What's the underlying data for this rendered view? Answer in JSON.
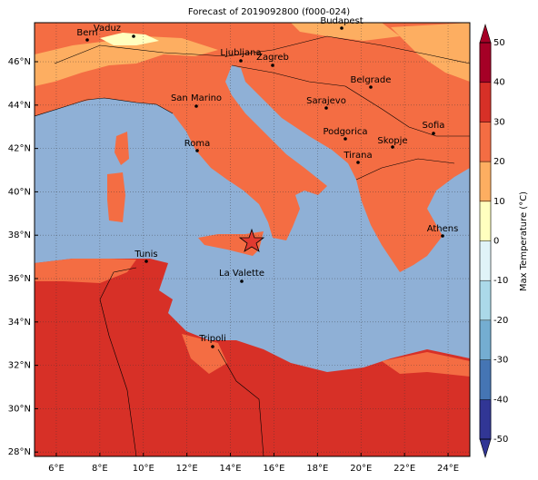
{
  "title": "Forecast of 2019092800 (f000-024)",
  "map": {
    "xlim": [
      5,
      25
    ],
    "ylim": [
      27.8,
      47.8
    ],
    "grid": true,
    "xticks": [
      {
        "value": 6,
        "label": "6°E"
      },
      {
        "value": 8,
        "label": "8°E"
      },
      {
        "value": 10,
        "label": "10°E"
      },
      {
        "value": 12,
        "label": "12°E"
      },
      {
        "value": 14,
        "label": "14°E"
      },
      {
        "value": 16,
        "label": "16°E"
      },
      {
        "value": 18,
        "label": "18°E"
      },
      {
        "value": 20,
        "label": "20°E"
      },
      {
        "value": 22,
        "label": "22°E"
      },
      {
        "value": 24,
        "label": "24°E"
      }
    ],
    "yticks": [
      {
        "value": 28,
        "label": "28°N"
      },
      {
        "value": 30,
        "label": "30°N"
      },
      {
        "value": 32,
        "label": "32°N"
      },
      {
        "value": 34,
        "label": "34°N"
      },
      {
        "value": 36,
        "label": "36°N"
      },
      {
        "value": 38,
        "label": "38°N"
      },
      {
        "value": 40,
        "label": "40°N"
      },
      {
        "value": 42,
        "label": "42°N"
      },
      {
        "value": 44,
        "label": "44°N"
      },
      {
        "value": 46,
        "label": "46°N"
      }
    ],
    "cities": [
      "Bern",
      "Vaduz",
      "Budapest",
      "Ljubljana",
      "Zagreb",
      "Belgrade",
      "San Marino",
      "Sarajevo",
      "Sofia",
      "Podgorica",
      "Skopje",
      "Roma",
      "Tirana",
      "Athens",
      "Tunis",
      "La Valette",
      "Tripoli"
    ]
  },
  "colorbar": {
    "label": "Max Temperature (°C)",
    "ylim": [
      -50,
      50
    ],
    "yticks": [
      -50,
      -40,
      -30,
      -20,
      -10,
      0,
      10,
      20,
      30,
      40,
      50
    ],
    "colors": [
      "#313695",
      "#4575b4",
      "#74add1",
      "#abd9e9",
      "#e0f3f8",
      "#ffffbf",
      "#fdae61",
      "#f46d43",
      "#d73027",
      "#a50026"
    ]
  }
}
